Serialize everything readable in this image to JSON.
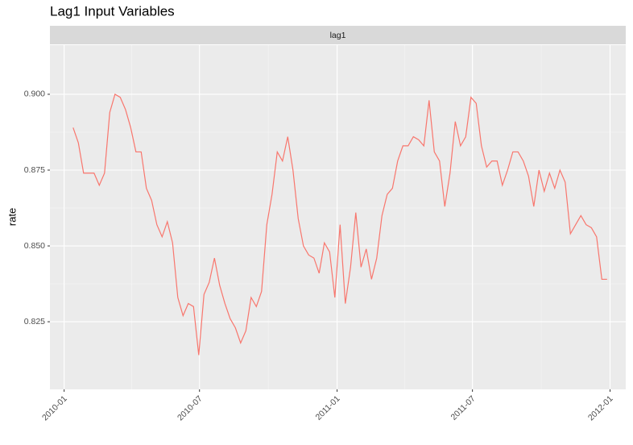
{
  "chart_data": {
    "type": "line",
    "title": "Lag1 Input Variables",
    "facet_label": "lag1",
    "y_label": "rate",
    "x": [
      "2010-01-13",
      "2010-01-20",
      "2010-01-27",
      "2010-02-03",
      "2010-02-10",
      "2010-02-17",
      "2010-02-24",
      "2010-03-03",
      "2010-03-10",
      "2010-03-17",
      "2010-03-24",
      "2010-03-31",
      "2010-04-07",
      "2010-04-14",
      "2010-04-21",
      "2010-04-28",
      "2010-05-05",
      "2010-05-12",
      "2010-05-19",
      "2010-05-26",
      "2010-06-02",
      "2010-06-09",
      "2010-06-16",
      "2010-06-23",
      "2010-06-30",
      "2010-07-07",
      "2010-07-14",
      "2010-07-21",
      "2010-07-28",
      "2010-08-04",
      "2010-08-11",
      "2010-08-18",
      "2010-08-25",
      "2010-09-01",
      "2010-09-08",
      "2010-09-15",
      "2010-09-22",
      "2010-09-29",
      "2010-10-06",
      "2010-10-13",
      "2010-10-20",
      "2010-10-27",
      "2010-11-03",
      "2010-11-10",
      "2010-11-17",
      "2010-11-24",
      "2010-12-01",
      "2010-12-08",
      "2010-12-15",
      "2010-12-22",
      "2010-12-29",
      "2011-01-05",
      "2011-01-12",
      "2011-01-19",
      "2011-01-26",
      "2011-02-02",
      "2011-02-09",
      "2011-02-16",
      "2011-02-23",
      "2011-03-02",
      "2011-03-09",
      "2011-03-16",
      "2011-03-23",
      "2011-03-30",
      "2011-04-06",
      "2011-04-13",
      "2011-04-20",
      "2011-04-27",
      "2011-05-04",
      "2011-05-11",
      "2011-05-18",
      "2011-05-25",
      "2011-06-01",
      "2011-06-08",
      "2011-06-15",
      "2011-06-22",
      "2011-06-29",
      "2011-07-06",
      "2011-07-13",
      "2011-07-20",
      "2011-07-27",
      "2011-08-03",
      "2011-08-10",
      "2011-08-17",
      "2011-08-24",
      "2011-08-31",
      "2011-09-07",
      "2011-09-14",
      "2011-09-21",
      "2011-09-28",
      "2011-10-05",
      "2011-10-12",
      "2011-10-19",
      "2011-10-26",
      "2011-11-02",
      "2011-11-09",
      "2011-11-16",
      "2011-11-23",
      "2011-11-30",
      "2011-12-07",
      "2011-12-14",
      "2011-12-21",
      "2011-12-28"
    ],
    "series": [
      {
        "name": "lag1",
        "color": "#F8766D",
        "values": [
          0.889,
          0.884,
          0.874,
          0.874,
          0.874,
          0.87,
          0.874,
          0.894,
          0.9,
          0.899,
          0.895,
          0.889,
          0.881,
          0.881,
          0.869,
          0.865,
          0.857,
          0.853,
          0.858,
          0.851,
          0.833,
          0.827,
          0.831,
          0.83,
          0.814,
          0.834,
          0.838,
          0.846,
          0.837,
          0.831,
          0.826,
          0.823,
          0.818,
          0.822,
          0.833,
          0.83,
          0.835,
          0.857,
          0.867,
          0.881,
          0.878,
          0.886,
          0.875,
          0.859,
          0.85,
          0.847,
          0.846,
          0.841,
          0.851,
          0.848,
          0.833,
          0.857,
          0.831,
          0.843,
          0.861,
          0.843,
          0.849,
          0.839,
          0.846,
          0.86,
          0.867,
          0.869,
          0.878,
          0.883,
          0.883,
          0.886,
          0.885,
          0.883,
          0.898,
          0.881,
          0.878,
          0.863,
          0.874,
          0.891,
          0.883,
          0.886,
          0.899,
          0.897,
          0.883,
          0.876,
          0.878,
          0.878,
          0.87,
          0.875,
          0.881,
          0.881,
          0.878,
          0.873,
          0.863,
          0.875,
          0.868,
          0.874,
          0.869,
          0.875,
          0.871,
          0.854,
          0.857,
          0.86,
          0.857,
          0.856,
          0.853,
          0.839,
          0.839
        ]
      }
    ],
    "xlim": [
      "2009-12-13",
      "2012-01-22"
    ],
    "xticks": [
      {
        "value": "2010-01-01",
        "label": "2010-01"
      },
      {
        "value": "2010-07-01",
        "label": "2010-07"
      },
      {
        "value": "2011-01-01",
        "label": "2011-01"
      },
      {
        "value": "2011-07-01",
        "label": "2011-07"
      },
      {
        "value": "2012-01-01",
        "label": "2012-01"
      }
    ],
    "ylim": [
      0.8027,
      0.9162
    ],
    "yticks": [
      0.825,
      {
        "value": 0.85,
        "label": "0.850"
      },
      0.875,
      {
        "value": 0.9,
        "label": "0.900"
      }
    ],
    "grid": true
  }
}
